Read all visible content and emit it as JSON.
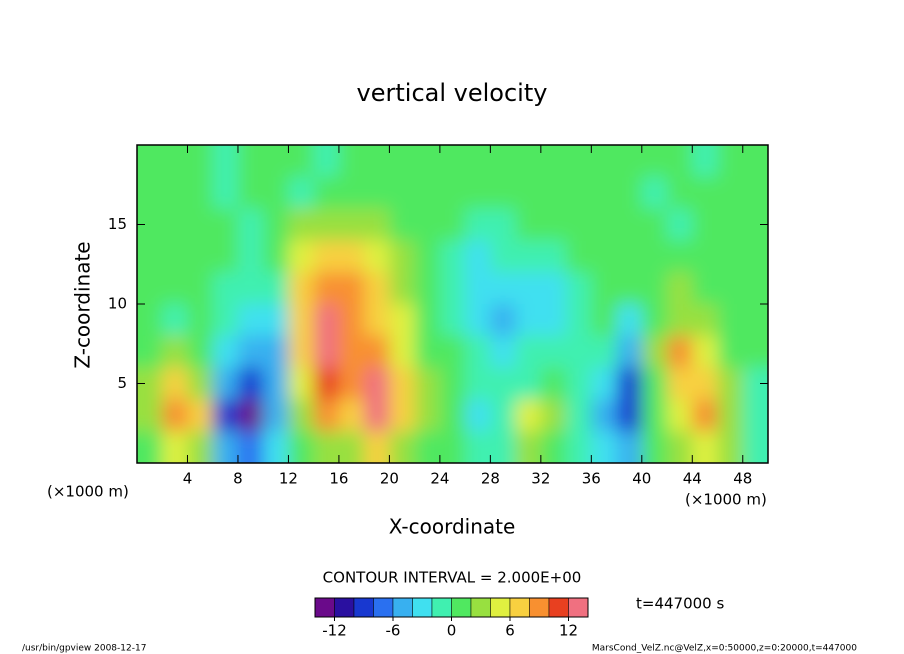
{
  "chart_data": {
    "type": "contour",
    "title": "vertical velocity",
    "xlabel": "X-coordinate",
    "ylabel": "Z-coordinate",
    "x_unit": "(×1000 m)",
    "y_unit": "(×1000 m)",
    "xlim": [
      0,
      50
    ],
    "ylim": [
      0,
      20
    ],
    "xticks": [
      4,
      8,
      12,
      16,
      20,
      24,
      28,
      32,
      36,
      40,
      44,
      48
    ],
    "yticks": [
      5,
      10,
      15
    ],
    "x": [
      1,
      3,
      5,
      7,
      9,
      11,
      13,
      15,
      17,
      19,
      21,
      23,
      25,
      27,
      29,
      31,
      33,
      35,
      37,
      39,
      41,
      43,
      45,
      47,
      49
    ],
    "y": [
      19,
      17,
      15,
      13,
      11,
      9,
      7,
      5,
      3,
      1
    ],
    "z": [
      [
        0,
        1,
        0,
        -1,
        0,
        1,
        0,
        -1,
        1,
        0,
        0,
        1,
        0,
        0,
        0,
        0,
        0,
        0,
        0,
        0,
        1,
        0,
        -1,
        0,
        0
      ],
      [
        0,
        0,
        1,
        -1,
        1,
        0,
        -1,
        1,
        0,
        1,
        0,
        0,
        0,
        0,
        0,
        0,
        0,
        0,
        0,
        1,
        -1,
        0,
        1,
        0,
        0
      ],
      [
        0,
        1,
        0,
        1,
        -1,
        0,
        2,
        3,
        3,
        2,
        1,
        0,
        0,
        -1,
        -1,
        0,
        0,
        0,
        1,
        0,
        1,
        -1,
        0,
        1,
        0
      ],
      [
        0,
        1,
        0,
        0,
        -1,
        1,
        4,
        6,
        6,
        4,
        2,
        0,
        -1,
        -3,
        -2,
        -2,
        -1,
        0,
        0,
        1,
        0,
        1,
        0,
        0,
        0
      ],
      [
        0,
        0,
        1,
        -1,
        -2,
        -1,
        6,
        9,
        8,
        6,
        3,
        1,
        -2,
        -4,
        -4,
        -3,
        -3,
        -1,
        0,
        1,
        0,
        2,
        1,
        0,
        0
      ],
      [
        0,
        -1,
        0,
        -2,
        -4,
        -3,
        7,
        12,
        9,
        7,
        4,
        1,
        -1,
        -3,
        -5,
        -3,
        -4,
        -2,
        0,
        -3,
        1,
        3,
        2,
        0,
        0
      ],
      [
        1,
        3,
        1,
        -3,
        -5,
        -6,
        6,
        13,
        8,
        9,
        5,
        1,
        0,
        -2,
        -3,
        -2,
        -2,
        -1,
        -1,
        -6,
        2,
        9,
        5,
        1,
        0
      ],
      [
        2,
        6,
        3,
        -5,
        -9,
        -5,
        5,
        11,
        8,
        12,
        6,
        2,
        0,
        -1,
        -1,
        -1,
        0,
        -1,
        -3,
        -9,
        1,
        7,
        6,
        2,
        -1
      ],
      [
        3,
        9,
        6,
        -10,
        -14,
        -6,
        3,
        8,
        7,
        13,
        7,
        2,
        0,
        -3,
        -2,
        5,
        2,
        -2,
        -6,
        -10,
        0,
        5,
        8,
        3,
        -2
      ],
      [
        1,
        4,
        2,
        -6,
        -8,
        -3,
        1,
        3,
        3,
        6,
        3,
        1,
        0,
        -2,
        -1,
        3,
        1,
        -1,
        -3,
        -5,
        0,
        2,
        4,
        2,
        -1
      ]
    ],
    "levels": [
      -14,
      -12,
      -10,
      -8,
      -6,
      -4,
      -2,
      0,
      2,
      4,
      6,
      8,
      10,
      12,
      14
    ],
    "colors": [
      "#6a0a8a",
      "#2a10a0",
      "#1838d0",
      "#2a70f0",
      "#38b0f0",
      "#40e0f0",
      "#40f0b0",
      "#50e860",
      "#98e040",
      "#e0f040",
      "#f8d040",
      "#f89030",
      "#e84020",
      "#f07080"
    ],
    "colorbar_ticks": [
      -12,
      -6,
      0,
      6,
      12
    ],
    "contour_interval": "CONTOUR INTERVAL = 2.000E+00",
    "time_label": "t=447000 s",
    "footer_left": "/usr/bin/gpview  2008-12-17",
    "footer_right": "MarsCond_VelZ.nc@VelZ,x=0:50000,z=0:20000,t=447000"
  }
}
